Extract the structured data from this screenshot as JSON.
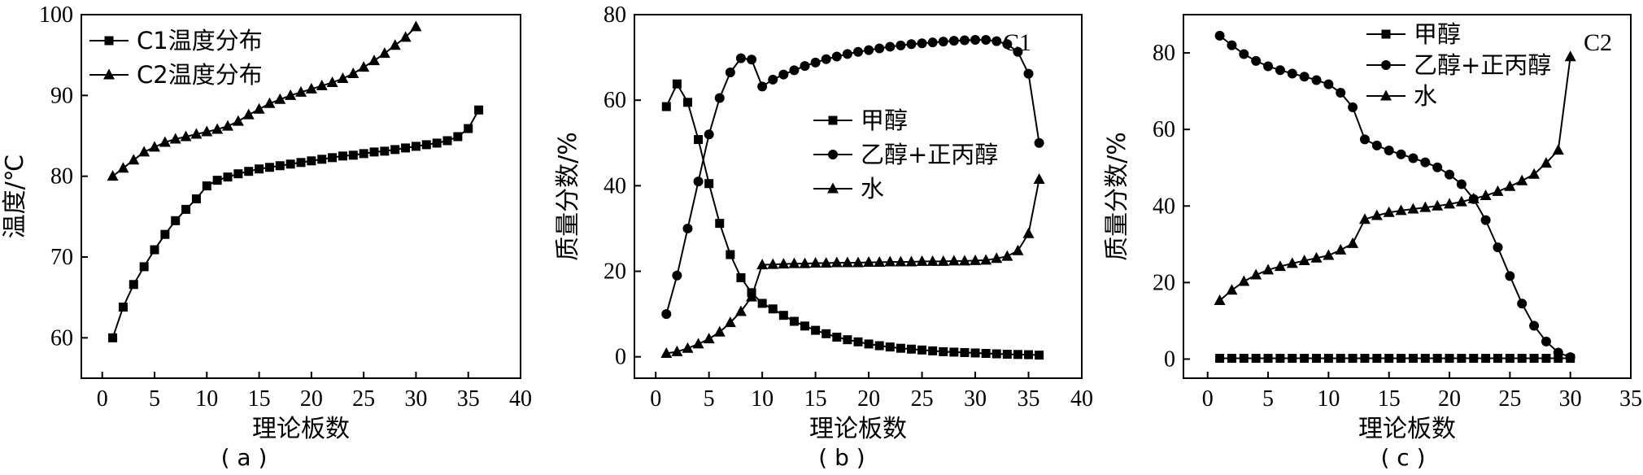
{
  "figure": {
    "panels": [
      {
        "caption": "( a )",
        "xlabel": "理论板数",
        "ylabel": "温度/℃",
        "corner_label": ""
      },
      {
        "caption": "( b )",
        "xlabel": "理论板数",
        "ylabel": "质量分数/%",
        "corner_label": "C1"
      },
      {
        "caption": "( c )",
        "xlabel": "理论板数",
        "ylabel": "质量分数/%",
        "corner_label": "C2"
      }
    ]
  },
  "chart_data": [
    {
      "type": "line",
      "panel": "a",
      "title": "",
      "xlabel": "理论板数",
      "ylabel": "温度/℃",
      "xlim": [
        -2,
        40
      ],
      "ylim": [
        55,
        100
      ],
      "xticks": [
        0,
        5,
        10,
        15,
        20,
        25,
        30,
        35,
        40
      ],
      "yticks": [
        60,
        70,
        80,
        90,
        100
      ],
      "grid": false,
      "legend_position": "top-left",
      "series": [
        {
          "name": "C1温度分布",
          "marker": "square",
          "x": [
            1,
            2,
            3,
            4,
            5,
            6,
            7,
            8,
            9,
            10,
            11,
            12,
            13,
            14,
            15,
            16,
            17,
            18,
            19,
            20,
            21,
            22,
            23,
            24,
            25,
            26,
            27,
            28,
            29,
            30,
            31,
            32,
            33,
            34,
            35,
            36
          ],
          "y": [
            60,
            63.8,
            66.6,
            68.8,
            70.9,
            72.8,
            74.5,
            75.9,
            77.2,
            78.8,
            79.5,
            79.9,
            80.3,
            80.6,
            80.9,
            81.1,
            81.3,
            81.5,
            81.7,
            81.9,
            82.1,
            82.3,
            82.5,
            82.6,
            82.8,
            83,
            83.1,
            83.3,
            83.5,
            83.7,
            83.9,
            84.1,
            84.4,
            84.9,
            85.9,
            88.2
          ]
        },
        {
          "name": "C2温度分布",
          "marker": "triangle",
          "x": [
            1,
            2,
            3,
            4,
            5,
            6,
            7,
            8,
            9,
            10,
            11,
            12,
            13,
            14,
            15,
            16,
            17,
            18,
            19,
            20,
            21,
            22,
            23,
            24,
            25,
            26,
            27,
            28,
            29,
            30
          ],
          "y": [
            80,
            81,
            82,
            83,
            83.6,
            84.2,
            84.6,
            84.9,
            85.2,
            85.5,
            85.8,
            86.2,
            86.8,
            87.6,
            88.3,
            89,
            89.5,
            90,
            90.4,
            90.8,
            91.2,
            91.6,
            92.1,
            92.7,
            93.5,
            94.3,
            95.2,
            96.2,
            97.2,
            98.5
          ]
        }
      ]
    },
    {
      "type": "line",
      "panel": "b",
      "title": "",
      "xlabel": "理论板数",
      "ylabel": "质量分数/%",
      "xlim": [
        -2,
        40
      ],
      "ylim": [
        -5,
        80
      ],
      "xticks": [
        0,
        5,
        10,
        15,
        20,
        25,
        30,
        35,
        40
      ],
      "yticks": [
        0,
        20,
        40,
        60,
        80
      ],
      "grid": false,
      "legend_position": "center",
      "series": [
        {
          "name": "甲醇",
          "marker": "square",
          "x": [
            1,
            2,
            3,
            4,
            5,
            6,
            7,
            8,
            9,
            10,
            11,
            12,
            13,
            14,
            15,
            16,
            17,
            18,
            19,
            20,
            21,
            22,
            23,
            24,
            25,
            26,
            27,
            28,
            29,
            30,
            31,
            32,
            33,
            34,
            35,
            36
          ],
          "y": [
            58.5,
            63.8,
            59.5,
            50.8,
            40.5,
            31.2,
            23.9,
            18.5,
            15,
            12.5,
            11.2,
            9.7,
            8.3,
            7.2,
            6.2,
            5.4,
            4.6,
            4,
            3.5,
            3,
            2.6,
            2.3,
            2,
            1.8,
            1.6,
            1.4,
            1.2,
            1.1,
            1,
            0.9,
            0.8,
            0.7,
            0.6,
            0.55,
            0.5,
            0.4
          ]
        },
        {
          "name": "乙醇+正丙醇",
          "marker": "circle",
          "x": [
            1,
            2,
            3,
            4,
            5,
            6,
            7,
            8,
            9,
            10,
            11,
            12,
            13,
            14,
            15,
            16,
            17,
            18,
            19,
            20,
            21,
            22,
            23,
            24,
            25,
            26,
            27,
            28,
            29,
            30,
            31,
            32,
            33,
            34,
            35,
            36
          ],
          "y": [
            10,
            19,
            30,
            41,
            52,
            60.5,
            66.5,
            69.8,
            69.5,
            63.2,
            64.8,
            66,
            67,
            68,
            68.8,
            69.6,
            70.2,
            70.8,
            71.3,
            71.7,
            72.1,
            72.5,
            72.8,
            73.1,
            73.3,
            73.5,
            73.7,
            73.9,
            74,
            74.1,
            74.1,
            73.8,
            73.1,
            71.3,
            66.2,
            50
          ]
        },
        {
          "name": "水",
          "marker": "triangle",
          "x": [
            1,
            2,
            3,
            4,
            5,
            6,
            7,
            8,
            9,
            10,
            11,
            12,
            13,
            14,
            15,
            16,
            17,
            18,
            19,
            20,
            21,
            22,
            23,
            24,
            25,
            26,
            27,
            28,
            29,
            30,
            31,
            32,
            33,
            34,
            35,
            36
          ],
          "y": [
            0.8,
            1.2,
            2,
            3,
            4.2,
            5.8,
            8,
            10.6,
            14,
            21.5,
            21.6,
            21.7,
            21.8,
            21.8,
            21.9,
            21.9,
            22,
            22,
            22,
            22.1,
            22.1,
            22.2,
            22.2,
            22.2,
            22.3,
            22.3,
            22.3,
            22.4,
            22.4,
            22.5,
            22.6,
            23,
            23.5,
            24.8,
            28.8,
            41.5
          ]
        }
      ]
    },
    {
      "type": "line",
      "panel": "c",
      "title": "",
      "xlabel": "理论板数",
      "ylabel": "质量分数/%",
      "xlim": [
        -2,
        35
      ],
      "ylim": [
        -5,
        90
      ],
      "xticks": [
        0,
        5,
        10,
        15,
        20,
        25,
        30,
        35
      ],
      "yticks": [
        0,
        20,
        40,
        60,
        80
      ],
      "grid": false,
      "legend_position": "top-right",
      "series": [
        {
          "name": "甲醇",
          "marker": "square",
          "x": [
            1,
            2,
            3,
            4,
            5,
            6,
            7,
            8,
            9,
            10,
            11,
            12,
            13,
            14,
            15,
            16,
            17,
            18,
            19,
            20,
            21,
            22,
            23,
            24,
            25,
            26,
            27,
            28,
            29,
            30
          ],
          "y": [
            0.2,
            0.2,
            0.2,
            0.2,
            0.2,
            0.2,
            0.2,
            0.2,
            0.2,
            0.2,
            0.2,
            0.2,
            0.2,
            0.2,
            0.2,
            0.2,
            0.2,
            0.2,
            0.2,
            0.2,
            0.2,
            0.2,
            0.2,
            0.2,
            0.2,
            0.2,
            0.2,
            0.2,
            0.2,
            0.2
          ]
        },
        {
          "name": "乙醇+正丙醇",
          "marker": "circle",
          "x": [
            1,
            2,
            3,
            4,
            5,
            6,
            7,
            8,
            9,
            10,
            11,
            12,
            13,
            14,
            15,
            16,
            17,
            18,
            19,
            20,
            21,
            22,
            23,
            24,
            25,
            26,
            27,
            28,
            29,
            30
          ],
          "y": [
            84.5,
            82,
            79.7,
            77.9,
            76.5,
            75.5,
            74.6,
            73.8,
            72.9,
            71.8,
            69.6,
            65.8,
            57.4,
            55.8,
            54.5,
            53.5,
            52.5,
            51.4,
            50.1,
            48.2,
            45.7,
            41.8,
            36.3,
            29.2,
            21.7,
            14.5,
            8.7,
            4.6,
            1.7,
            0.5
          ]
        },
        {
          "name": "水",
          "marker": "triangle",
          "x": [
            1,
            2,
            3,
            4,
            5,
            6,
            7,
            8,
            9,
            10,
            11,
            12,
            13,
            14,
            15,
            16,
            17,
            18,
            19,
            20,
            21,
            22,
            23,
            24,
            25,
            26,
            27,
            28,
            29,
            30
          ],
          "y": [
            15.3,
            18,
            20.3,
            22,
            23.3,
            24.2,
            25,
            25.7,
            26.4,
            27.1,
            28.5,
            30.2,
            36.5,
            37.5,
            38.3,
            38.8,
            39.2,
            39.6,
            40,
            40.5,
            41.1,
            41.9,
            42.7,
            43.8,
            45.1,
            46.6,
            48.3,
            51.2,
            54.6,
            79
          ]
        }
      ]
    }
  ]
}
